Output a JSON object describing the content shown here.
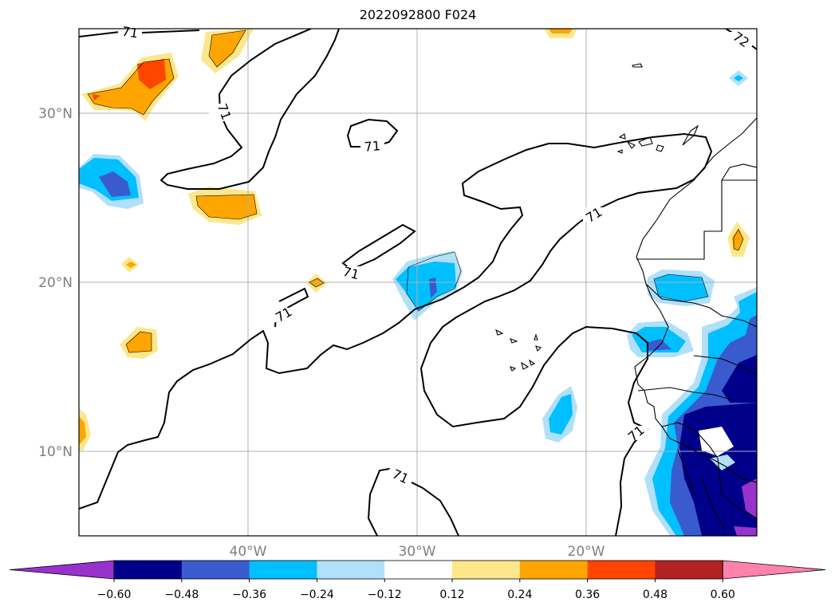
{
  "title": "2022092800 F024",
  "map": {
    "lon_range": [
      -50,
      -10
    ],
    "lat_range": [
      5,
      35
    ],
    "lon_ticks": [
      {
        "value": -40,
        "label": "40°W"
      },
      {
        "value": -30,
        "label": "30°W"
      },
      {
        "value": -20,
        "label": "20°W"
      }
    ],
    "lat_ticks": [
      {
        "value": 10,
        "label": "10°N"
      },
      {
        "value": 20,
        "label": "20°N"
      },
      {
        "value": 30,
        "label": "30°N"
      }
    ],
    "grid": true,
    "contour_label": "71",
    "contour_label_northeast": "72"
  },
  "colorbar": {
    "ticks": [
      "−0.60",
      "−0.48",
      "−0.36",
      "−0.24",
      "−0.12",
      "0.12",
      "0.24",
      "0.36",
      "0.48",
      "0.60"
    ],
    "colors": [
      "#9932cc",
      "#00008b",
      "#3a5bcd",
      "#00bfff",
      "#b0e0fa",
      "#ffffff",
      "#fde78b",
      "#ffa500",
      "#ff4500",
      "#b22222",
      "#ff82ab"
    ],
    "extend": "both"
  }
}
